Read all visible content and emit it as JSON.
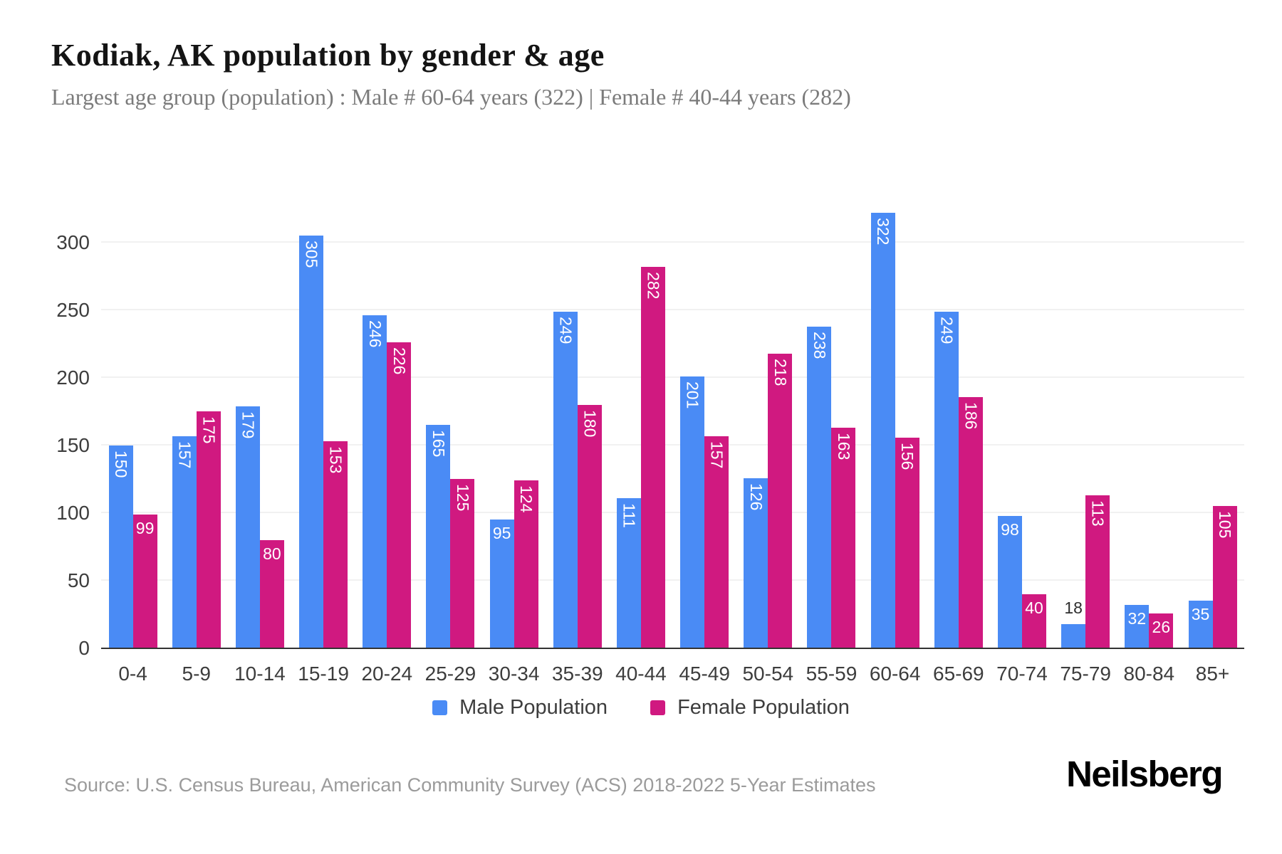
{
  "title": "Kodiak, AK population by gender & age",
  "subtitle": "Largest age group (population) : Male # 60-64 years (322) | Female # 40-44 years (282)",
  "source": "Source: U.S. Census Bureau, American Community Survey (ACS) 2018-2022 5-Year Estimates",
  "brand": "Neilsberg",
  "colors": {
    "male": "#4a8bf5",
    "female": "#d01980",
    "grid": "#f1f1f1",
    "axis": "#333333",
    "tick_text": "#3d3d3d",
    "bar_label_inside": "#ffffff",
    "bar_label_outside": "#2e2e2e"
  },
  "legend": [
    {
      "label": "Male Population",
      "color_key": "male"
    },
    {
      "label": "Female Population",
      "color_key": "female"
    }
  ],
  "chart_data": {
    "type": "bar",
    "title": "Kodiak, AK population by gender & age",
    "subtitle": "Largest age group (population) : Male # 60-64 years (322) | Female # 40-44 years (282)",
    "xlabel": "",
    "ylabel": "",
    "categories": [
      "0-4",
      "5-9",
      "10-14",
      "15-19",
      "20-24",
      "25-29",
      "30-34",
      "35-39",
      "40-44",
      "45-49",
      "50-54",
      "55-59",
      "60-64",
      "65-69",
      "70-74",
      "75-79",
      "80-84",
      "85+"
    ],
    "series": [
      {
        "name": "Male Population",
        "color": "#4a8bf5",
        "values": [
          150,
          157,
          179,
          305,
          246,
          165,
          95,
          249,
          111,
          201,
          126,
          238,
          322,
          249,
          98,
          18,
          32,
          35
        ]
      },
      {
        "name": "Female Population",
        "color": "#d01980",
        "values": [
          99,
          175,
          80,
          153,
          226,
          125,
          124,
          180,
          282,
          157,
          218,
          163,
          156,
          186,
          40,
          113,
          26,
          105
        ]
      }
    ],
    "ylim": [
      0,
      332
    ],
    "yticks": [
      0,
      50,
      100,
      150,
      200,
      250,
      300
    ],
    "grid": true,
    "legend_position": "bottom"
  }
}
